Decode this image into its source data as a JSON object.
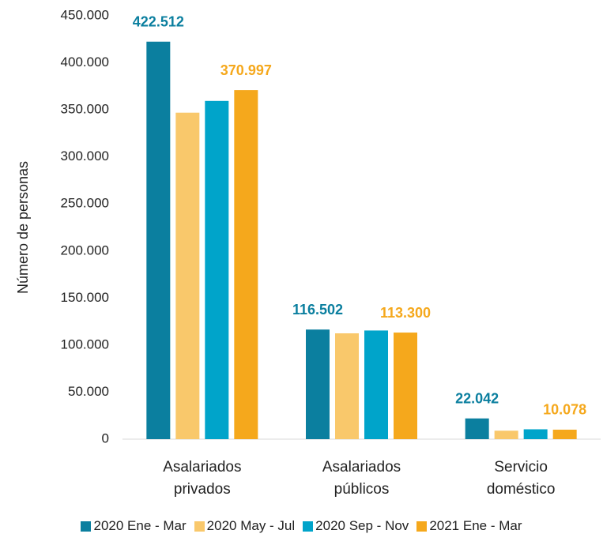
{
  "chart_data": {
    "type": "bar",
    "y_label": "Número de personas",
    "categories": [
      "Asalariados privados",
      "Asalariados públicos",
      "Servicio doméstico"
    ],
    "series": [
      {
        "name": "2020 Ene - Mar",
        "color": "#0b7f9f",
        "values": [
          422512,
          116502,
          22042
        ],
        "value_labels": [
          "422.512",
          "116.502",
          "22.042"
        ]
      },
      {
        "name": "2020 May - Jul",
        "color": "#f9c86b",
        "values": [
          347000,
          112500,
          9000
        ]
      },
      {
        "name": "2020 Sep - Nov",
        "color": "#00a4ca",
        "values": [
          359500,
          115500,
          10500
        ]
      },
      {
        "name": "2021 Ene - Mar",
        "color": "#f5a81c",
        "values": [
          370997,
          113300,
          10078
        ],
        "value_labels": [
          "370.997",
          "113.300",
          "10.078"
        ]
      }
    ],
    "ylim": [
      0,
      450000
    ],
    "yticks": [
      0,
      {
        "value": 50000,
        "label": "50.000"
      },
      {
        "value": 100000,
        "label": "100.000"
      },
      {
        "value": 150000,
        "label": "150.000"
      },
      {
        "value": 200000,
        "label": "200.000"
      },
      {
        "value": 250000,
        "label": "250.000"
      },
      {
        "value": 300000,
        "label": "300.000"
      },
      {
        "value": 350000,
        "label": "350.000"
      },
      {
        "value": 400000,
        "label": "400.000"
      },
      {
        "value": 450000,
        "label": "450.000"
      }
    ],
    "grid": false,
    "legend": "bottom"
  }
}
